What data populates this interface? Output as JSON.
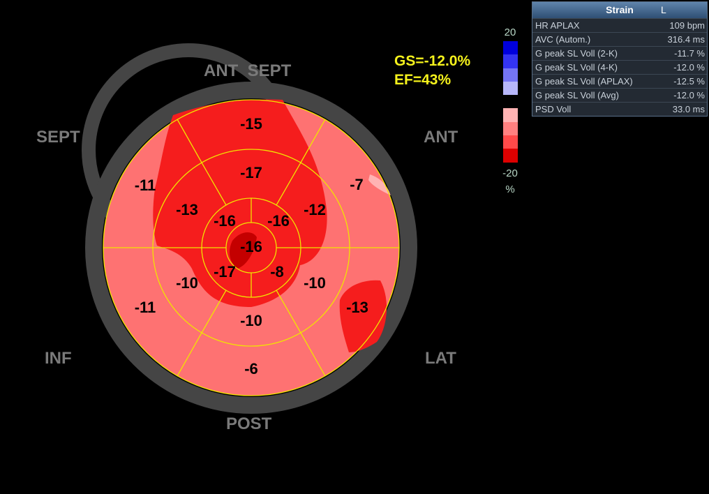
{
  "summary": {
    "gs": "GS=-12.0%",
    "ef": "EF=43%"
  },
  "walls": {
    "ant_sept": "ANT  SEPT",
    "sept": "SEPT",
    "ant": "ANT",
    "inf": "INF",
    "lat": "LAT",
    "post": "POST"
  },
  "colors": {
    "segment_fill": "#fe7272",
    "dark_region": "#f51d1d",
    "apex_dark": "#c40000",
    "ring": "#454545",
    "grid": "#f1e400",
    "summary_text": "#f5f21c",
    "wall_label": "#7a7a7a"
  },
  "scale": {
    "max_label": "20",
    "min_label": "-20",
    "unit": "%",
    "colors": [
      "#0000dd",
      "#3434f2",
      "#7575f5",
      "#b7b7fa",
      "#000000",
      "#ffb3b3",
      "#ff8080",
      "#ff4a4a",
      "#dd0000"
    ]
  },
  "segments": {
    "basal": [
      "-15",
      "-7",
      "-13",
      "-6",
      "-11",
      "-11"
    ],
    "mid": [
      "-17",
      "-12",
      "-10",
      "-10",
      "-10",
      "-13"
    ],
    "apical": [
      "-16",
      "-16",
      "-8",
      "-17"
    ],
    "apex": "-16"
  },
  "panel": {
    "title": "Strain",
    "flag": "L",
    "rows": [
      {
        "label": "HR APLAX",
        "value": "109 bpm"
      },
      {
        "label": "AVC (Autom.)",
        "value": "316.4 ms"
      },
      {
        "label": "G peak SL Voll (2-K)",
        "value": "-11.7 %"
      },
      {
        "label": "G peak SL Voll (4-K)",
        "value": "-12.0 %"
      },
      {
        "label": "G peak SL Voll (APLAX)",
        "value": "-12.5 %"
      },
      {
        "label": "G peak SL Voll (Avg)",
        "value": "-12.0 %"
      },
      {
        "label": "PSD Voll",
        "value": "33.0 ms"
      }
    ]
  }
}
